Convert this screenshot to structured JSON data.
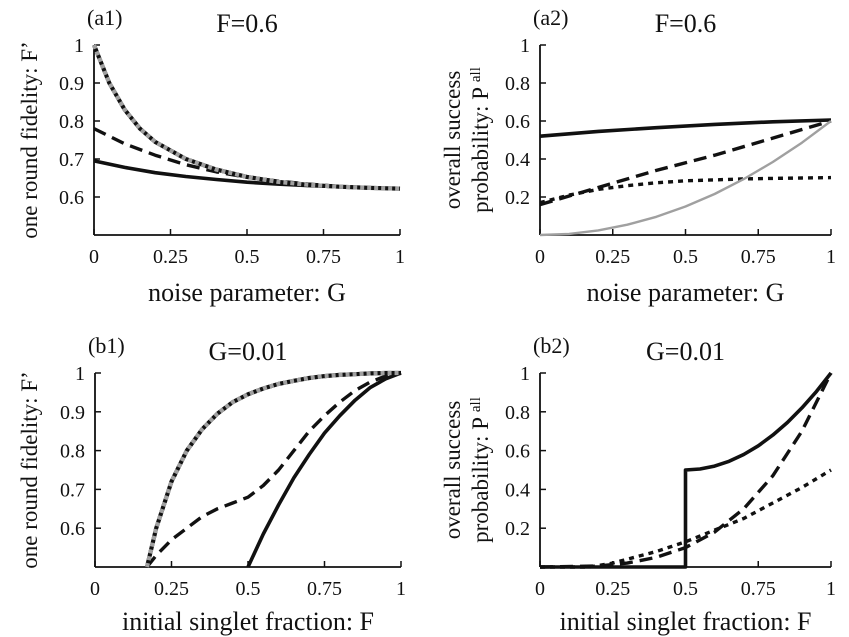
{
  "colors": {
    "black": "#111111",
    "gray": "#a0a0a0"
  },
  "chart_data": [
    {
      "id": "a1",
      "type": "line",
      "panel_label": "(a1)",
      "title": "F=0.6",
      "xlabel": "noise parameter: G",
      "ylabel": "one round fidelity: F’",
      "ylabel_sup": "",
      "xlim": [
        0,
        1
      ],
      "ylim": [
        0.5,
        1
      ],
      "xticks": [
        0,
        0.25,
        0.5,
        0.75,
        1
      ],
      "xtick_labels": [
        "0",
        "0.25",
        "0.5",
        "0.75",
        "1"
      ],
      "yticks": [
        0.6,
        0.7,
        0.8,
        0.9,
        1
      ],
      "ytick_labels": [
        "0.6",
        "0.7",
        "0.8",
        "0.9",
        "1"
      ],
      "series": [
        {
          "style": "solid",
          "x": [
            0,
            0.1,
            0.2,
            0.3,
            0.4,
            0.5,
            0.6,
            0.7,
            0.8,
            0.9,
            1
          ],
          "y": [
            0.695,
            0.678,
            0.664,
            0.654,
            0.646,
            0.639,
            0.634,
            0.63,
            0.627,
            0.624,
            0.622
          ]
        },
        {
          "style": "dashed",
          "x": [
            0,
            0.1,
            0.2,
            0.3,
            0.4,
            0.5,
            0.6,
            0.7,
            0.8,
            0.9,
            1
          ],
          "y": [
            0.78,
            0.74,
            0.71,
            0.685,
            0.666,
            0.652,
            0.642,
            0.634,
            0.628,
            0.624,
            0.622
          ]
        },
        {
          "style": "gray-dotted",
          "x": [
            0,
            0.05,
            0.1,
            0.15,
            0.2,
            0.3,
            0.4,
            0.5,
            0.6,
            0.7,
            0.8,
            0.9,
            1
          ],
          "y": [
            1.0,
            0.9,
            0.83,
            0.78,
            0.745,
            0.7,
            0.672,
            0.653,
            0.64,
            0.632,
            0.627,
            0.624,
            0.622
          ]
        }
      ]
    },
    {
      "id": "a2",
      "type": "line",
      "panel_label": "(a2)",
      "title": "F=0.6",
      "xlabel": "noise parameter: G",
      "ylabel": "overall success probability: P",
      "ylabel_sup": "all",
      "xlim": [
        0,
        1
      ],
      "ylim": [
        0,
        1
      ],
      "xticks": [
        0,
        0.25,
        0.5,
        0.75,
        1
      ],
      "xtick_labels": [
        "0",
        "0.25",
        "0.5",
        "0.75",
        "1"
      ],
      "yticks": [
        0.2,
        0.4,
        0.6,
        0.8,
        1
      ],
      "ytick_labels": [
        "0.2",
        "0.4",
        "0.6",
        "0.8",
        "1"
      ],
      "series": [
        {
          "style": "solid",
          "x": [
            0,
            0.2,
            0.4,
            0.6,
            0.8,
            1
          ],
          "y": [
            0.52,
            0.545,
            0.565,
            0.582,
            0.596,
            0.605
          ]
        },
        {
          "style": "dashed",
          "x": [
            0,
            0.2,
            0.4,
            0.6,
            0.8,
            1
          ],
          "y": [
            0.16,
            0.25,
            0.34,
            0.42,
            0.51,
            0.6
          ]
        },
        {
          "style": "dotted",
          "x": [
            0,
            0.1,
            0.2,
            0.3,
            0.4,
            0.5,
            0.6,
            0.7,
            0.8,
            0.9,
            1
          ],
          "y": [
            0.17,
            0.21,
            0.24,
            0.26,
            0.275,
            0.285,
            0.29,
            0.295,
            0.298,
            0.3,
            0.302
          ]
        },
        {
          "style": "gray-solid",
          "x": [
            0,
            0.1,
            0.2,
            0.3,
            0.4,
            0.5,
            0.6,
            0.7,
            0.8,
            0.9,
            1
          ],
          "y": [
            0,
            0.006,
            0.024,
            0.054,
            0.096,
            0.15,
            0.216,
            0.294,
            0.384,
            0.486,
            0.6
          ]
        }
      ]
    },
    {
      "id": "b1",
      "type": "line",
      "panel_label": "(b1)",
      "title": "G=0.01",
      "xlabel": "initial singlet fraction: F",
      "ylabel": "one round fidelity: F’",
      "ylabel_sup": "",
      "xlim": [
        0,
        1
      ],
      "ylim": [
        0.5,
        1
      ],
      "xticks": [
        0,
        0.25,
        0.5,
        0.75,
        1
      ],
      "xtick_labels": [
        "0",
        "0.25",
        "0.5",
        "0.75",
        "1"
      ],
      "yticks": [
        0.6,
        0.7,
        0.8,
        0.9,
        1
      ],
      "ytick_labels": [
        "0.6",
        "0.7",
        "0.8",
        "0.9",
        "1"
      ],
      "series": [
        {
          "style": "solid",
          "x": [
            0.5,
            0.55,
            0.6,
            0.65,
            0.7,
            0.75,
            0.8,
            0.85,
            0.9,
            0.95,
            1
          ],
          "y": [
            0.5,
            0.585,
            0.66,
            0.73,
            0.79,
            0.845,
            0.89,
            0.93,
            0.963,
            0.985,
            1.0
          ]
        },
        {
          "style": "dashed",
          "x": [
            0.17,
            0.2,
            0.25,
            0.3,
            0.35,
            0.4,
            0.45,
            0.5,
            0.55,
            0.6,
            0.65,
            0.7,
            0.75,
            0.8,
            0.85,
            0.9,
            0.95,
            1
          ],
          "y": [
            0.5,
            0.53,
            0.57,
            0.6,
            0.63,
            0.65,
            0.665,
            0.68,
            0.71,
            0.75,
            0.8,
            0.85,
            0.89,
            0.925,
            0.955,
            0.977,
            0.992,
            1.0
          ]
        },
        {
          "style": "gray-dotted",
          "x": [
            0.17,
            0.2,
            0.25,
            0.3,
            0.35,
            0.4,
            0.45,
            0.5,
            0.55,
            0.6,
            0.65,
            0.7,
            0.75,
            0.8,
            0.85,
            0.9,
            0.95,
            1
          ],
          "y": [
            0.5,
            0.6,
            0.72,
            0.8,
            0.855,
            0.895,
            0.925,
            0.945,
            0.96,
            0.972,
            0.98,
            0.987,
            0.992,
            0.995,
            0.997,
            0.999,
            1.0,
            1.0
          ]
        }
      ]
    },
    {
      "id": "b2",
      "type": "line",
      "panel_label": "(b2)",
      "title": "G=0.01",
      "xlabel": "initial singlet fraction: F",
      "ylabel": "overall success probability: P",
      "ylabel_sup": "all",
      "xlim": [
        0,
        1
      ],
      "ylim": [
        0,
        1
      ],
      "xticks": [
        0,
        0.25,
        0.5,
        0.75,
        1
      ],
      "xtick_labels": [
        "0",
        "0.25",
        "0.5",
        "0.75",
        "1"
      ],
      "yticks": [
        0.2,
        0.4,
        0.6,
        0.8,
        1
      ],
      "ytick_labels": [
        "0.2",
        "0.4",
        "0.6",
        "0.8",
        "1"
      ],
      "series": [
        {
          "style": "solid",
          "x": [
            0,
            0.5,
            0.5,
            0.55,
            0.6,
            0.65,
            0.7,
            0.75,
            0.8,
            0.85,
            0.9,
            0.95,
            1
          ],
          "y": [
            0,
            0,
            0.5,
            0.505,
            0.52,
            0.545,
            0.58,
            0.625,
            0.68,
            0.745,
            0.82,
            0.905,
            1.0
          ]
        },
        {
          "style": "dashed",
          "x": [
            0,
            0.2,
            0.3,
            0.4,
            0.5,
            0.6,
            0.7,
            0.8,
            0.9,
            1
          ],
          "y": [
            0,
            0.005,
            0.02,
            0.05,
            0.1,
            0.18,
            0.3,
            0.47,
            0.7,
            1.0
          ]
        },
        {
          "style": "dotted",
          "x": [
            0,
            0.17,
            0.25,
            0.3,
            0.4,
            0.5,
            0.6,
            0.7,
            0.8,
            0.9,
            1
          ],
          "y": [
            0,
            0,
            0.02,
            0.04,
            0.08,
            0.13,
            0.19,
            0.25,
            0.33,
            0.41,
            0.5
          ]
        }
      ]
    }
  ]
}
